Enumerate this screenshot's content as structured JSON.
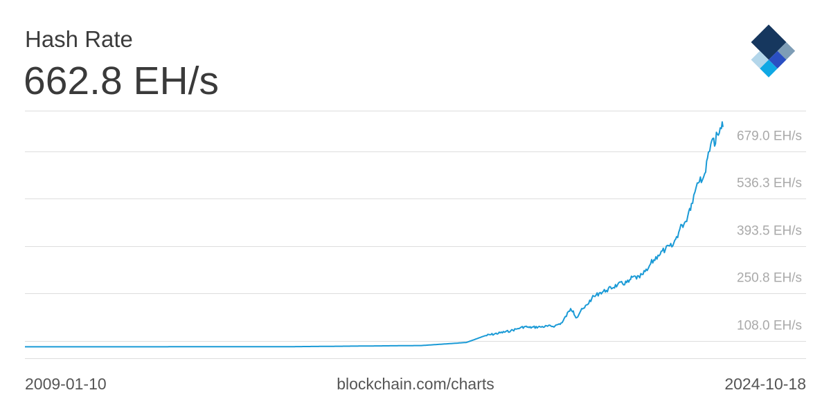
{
  "header": {
    "title": "Hash Rate",
    "value": "662.8 EH/s"
  },
  "footer": {
    "start_date": "2009-01-10",
    "source": "blockchain.com/charts",
    "end_date": "2024-10-18"
  },
  "colors": {
    "line": "#1a9ad6",
    "grid": "#dddddd",
    "tick_text": "#a9a9a9",
    "logo_dark": "#16375e",
    "logo_gray": "#7e9db6",
    "logo_blue": "#2a4fc2",
    "logo_light": "#b3d6ea",
    "logo_cyan": "#10a8e4"
  },
  "icons": {
    "logo": "blockchain-logo-icon"
  },
  "chart_data": {
    "type": "line",
    "title": "Hash Rate",
    "xlabel": "",
    "ylabel": "",
    "x_range": [
      "2009-01-10",
      "2024-10-18"
    ],
    "ylim": [
      -34.7,
      712.0
    ],
    "y_ticks": [
      108.0,
      250.8,
      393.5,
      536.3,
      679.0
    ],
    "y_tick_labels": [
      "108.0 EH/s",
      "250.8 EH/s",
      "393.5 EH/s",
      "536.3 EH/s",
      "679.0 EH/s"
    ],
    "grid": true,
    "series": [
      {
        "name": "",
        "x": [
          "2009-01-10",
          "2012-01-01",
          "2015-01-01",
          "2018-01-01",
          "2019-01-01",
          "2019-06-01",
          "2020-01-01",
          "2020-03-01",
          "2020-03-20",
          "2020-05-01",
          "2020-06-01",
          "2020-09-01",
          "2021-01-01",
          "2021-03-01",
          "2021-05-10",
          "2021-06-01",
          "2021-06-15",
          "2021-07-01",
          "2021-08-01",
          "2021-09-01",
          "2021-11-01",
          "2022-01-01",
          "2022-03-01",
          "2022-06-01",
          "2022-09-01",
          "2022-10-01",
          "2022-12-01",
          "2022-12-20",
          "2023-02-01",
          "2023-03-01",
          "2023-05-01",
          "2023-07-01",
          "2023-09-01",
          "2023-10-01",
          "2023-11-15",
          "2023-12-15",
          "2024-01-10",
          "2024-02-01",
          "2024-03-01",
          "2024-03-20",
          "2024-04-15",
          "2024-05-01",
          "2024-05-20",
          "2024-06-05",
          "2024-06-20",
          "2024-07-10",
          "2024-07-25",
          "2024-08-10",
          "2024-08-25",
          "2024-09-10",
          "2024-09-25",
          "2024-10-05",
          "2024-10-12",
          "2024-10-18"
        ],
        "y": [
          0.0,
          0.0,
          0.3,
          3.8,
          13.0,
          33.0,
          48.0,
          55.0,
          57.0,
          61.0,
          58.0,
          60.0,
          63.0,
          73.0,
          115.0,
          108.0,
          93.0,
          88.0,
          108.0,
          117.0,
          146.0,
          162.0,
          170.0,
          187.0,
          195.0,
          210.0,
          208.0,
          218.0,
          230.0,
          250.0,
          276.0,
          294.0,
          305.0,
          332.0,
          367.0,
          378.0,
          408.0,
          432.0,
          467.0,
          494.0,
          512.0,
          503.0,
          522.0,
          560.0,
          587.0,
          612.0,
          628.0,
          605.0,
          647.0,
          638.0,
          660.0,
          658.0,
          678.0,
          662.8
        ]
      }
    ]
  }
}
